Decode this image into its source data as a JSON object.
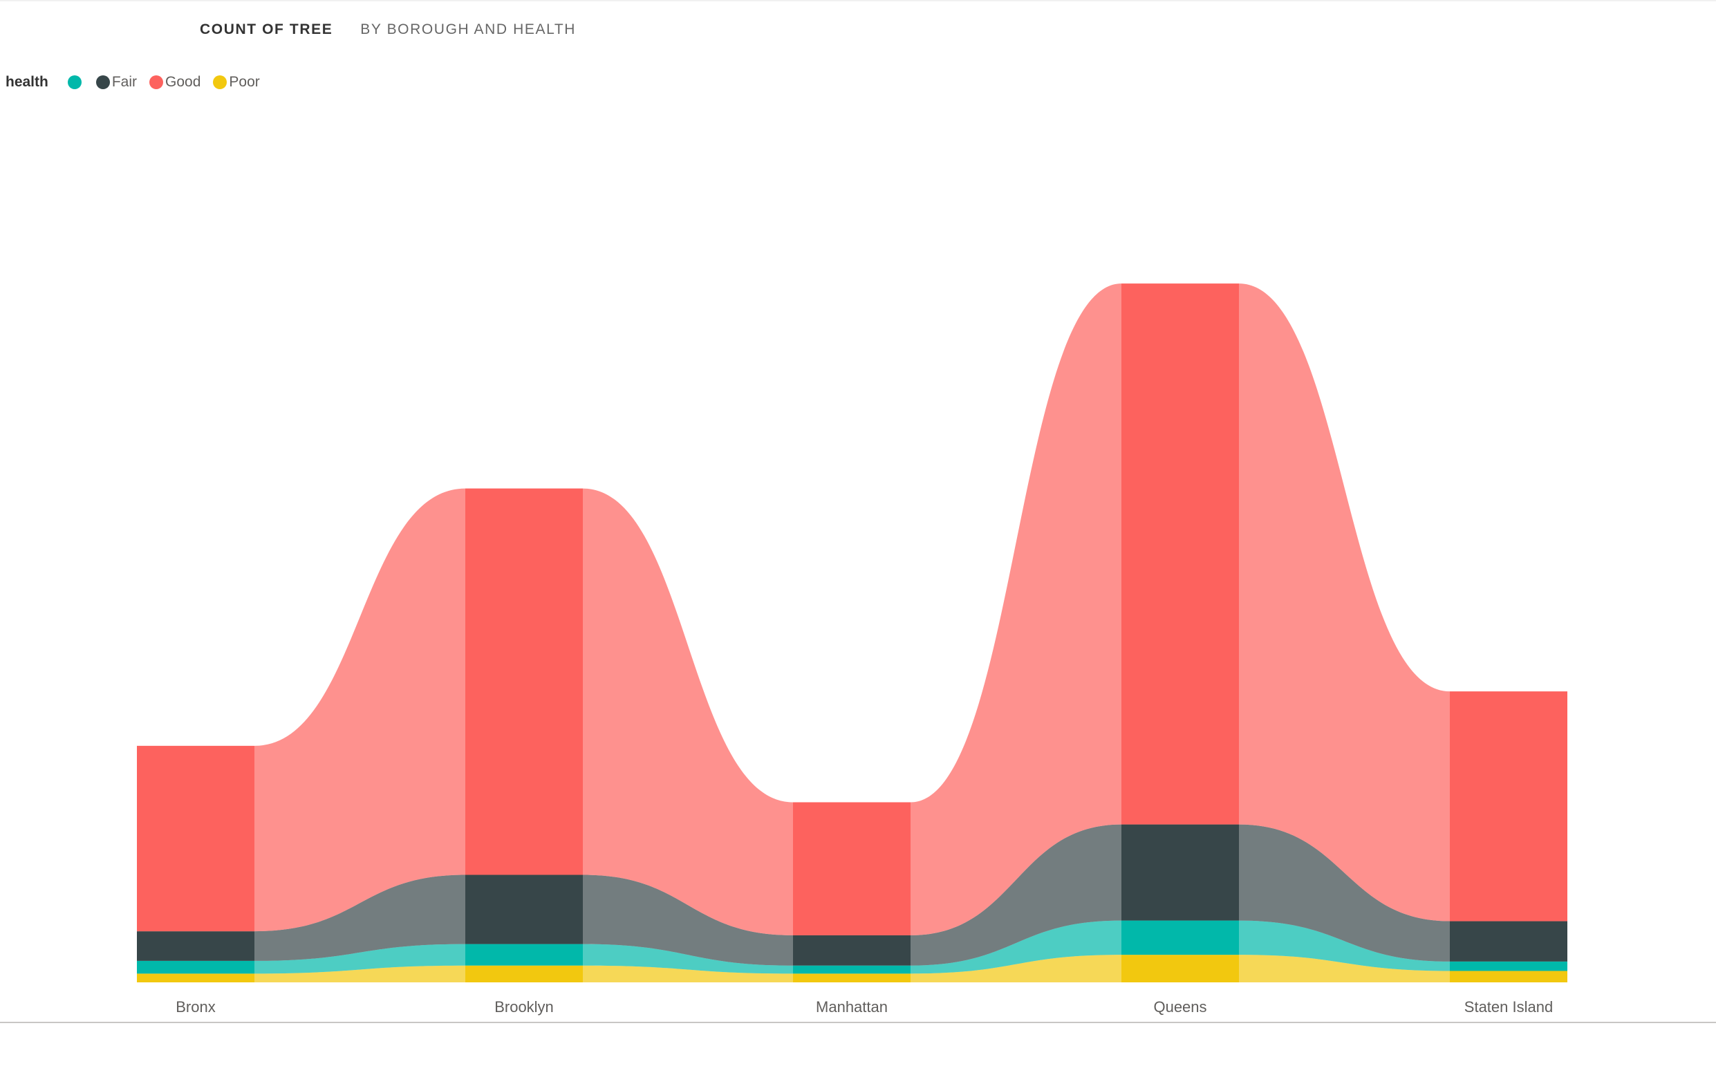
{
  "header": {
    "title": "COUNT OF TREE",
    "subtitle": "BY BOROUGH AND HEALTH"
  },
  "legend": {
    "title": "health",
    "items": [
      {
        "label": "",
        "color": "#01b8aa"
      },
      {
        "label": "Fair",
        "color": "#374649"
      },
      {
        "label": "Good",
        "color": "#fd625e"
      },
      {
        "label": "Poor",
        "color": "#f2c80f"
      }
    ]
  },
  "chart_data": {
    "type": "area",
    "subtype": "ribbon",
    "title": "COUNT OF TREE",
    "subtitle": "BY BOROUGH AND HEALTH",
    "categories": [
      "Bronx",
      "Brooklyn",
      "Manhattan",
      "Queens",
      "Staten Island"
    ],
    "stack_order_bottom_to_top": [
      "Poor",
      "",
      "Fair",
      "Good"
    ],
    "series": [
      {
        "name": "",
        "color": "#01b8aa",
        "values": [
          19000,
          32000,
          12000,
          51000,
          14000
        ]
      },
      {
        "name": "Fair",
        "color": "#374649",
        "values": [
          44000,
          103000,
          45000,
          143000,
          60000
        ]
      },
      {
        "name": "Good",
        "color": "#fd625e",
        "values": [
          276000,
          575000,
          198000,
          805000,
          342000
        ]
      },
      {
        "name": "Poor",
        "color": "#f2c80f",
        "values": [
          13000,
          25000,
          13000,
          41000,
          17000
        ]
      }
    ],
    "legend_position": "top-left",
    "grid": false
  }
}
